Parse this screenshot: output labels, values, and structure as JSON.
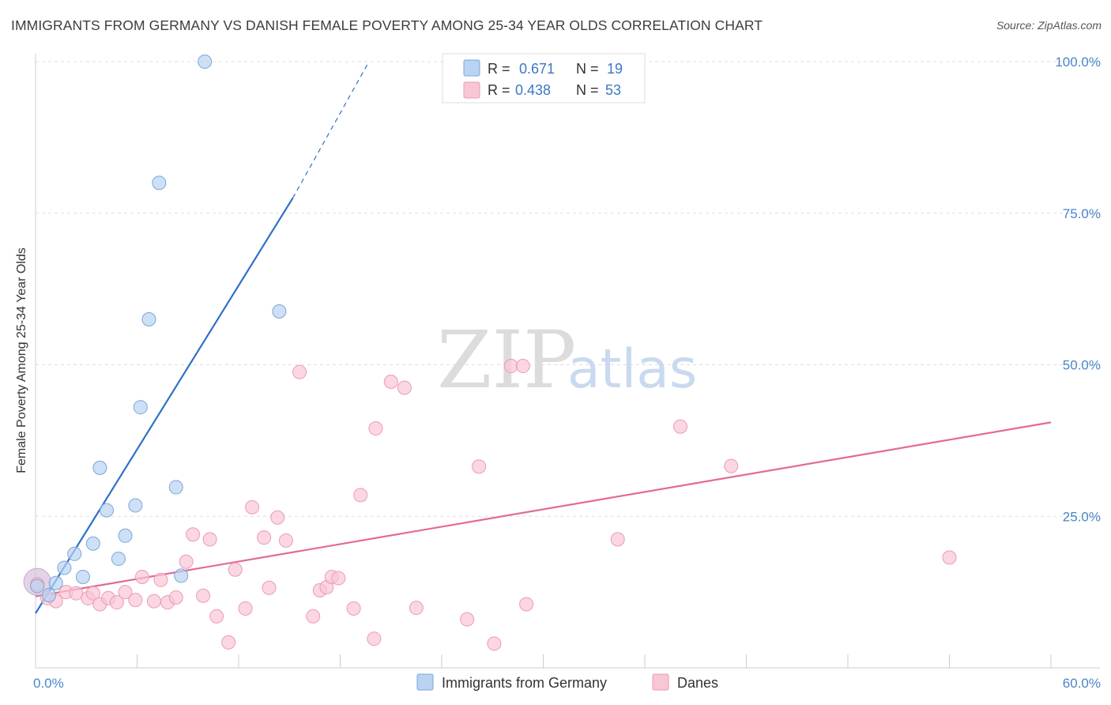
{
  "title": "IMMIGRANTS FROM GERMANY VS DANISH FEMALE POVERTY AMONG 25-34 YEAR OLDS CORRELATION CHART",
  "source": "Source: ZipAtlas.com",
  "watermark": {
    "zip": "ZIP",
    "atlas": "atlas"
  },
  "colors": {
    "germany_fill": "#b9d3f2",
    "germany_stroke": "#7aa6d9",
    "germany_line": "#2f70c9",
    "danes_fill": "#f8c6d5",
    "danes_stroke": "#ee9ab3",
    "danes_line": "#e36a93",
    "tick_text": "#4a86c8",
    "grid": "#dddddd"
  },
  "legend": {
    "r_label": "R =",
    "n_label": "N =",
    "germany": {
      "r": "0.671",
      "n": "19"
    },
    "danes": {
      "r": "0.438",
      "n": "53"
    }
  },
  "chart_data": {
    "type": "scatter",
    "title": "IMMIGRANTS FROM GERMANY VS DANISH FEMALE POVERTY AMONG 25-34 YEAR OLDS CORRELATION CHART",
    "xlabel": "",
    "ylabel": "Female Poverty Among 25-34 Year Olds",
    "xlim": [
      0,
      60
    ],
    "ylim": [
      0,
      105
    ],
    "x_ticks": [
      "0.0%",
      "60.0%"
    ],
    "y_ticks": [
      {
        "value": 25,
        "label": "25.0%"
      },
      {
        "value": 50,
        "label": "50.0%"
      },
      {
        "value": 75,
        "label": "75.0%"
      },
      {
        "value": 100,
        "label": "100.0%"
      }
    ],
    "grid": true,
    "legend_position": "top-center",
    "series": [
      {
        "name": "Immigrants from Germany",
        "points": [
          [
            0.1,
            13.5
          ],
          [
            0.8,
            12.0
          ],
          [
            1.2,
            14.0
          ],
          [
            1.7,
            16.5
          ],
          [
            2.3,
            18.8
          ],
          [
            2.8,
            15.0
          ],
          [
            3.4,
            20.5
          ],
          [
            3.8,
            33.0
          ],
          [
            4.2,
            26.0
          ],
          [
            4.9,
            18.0
          ],
          [
            5.3,
            21.8
          ],
          [
            5.9,
            26.8
          ],
          [
            6.2,
            43.0
          ],
          [
            6.7,
            57.5
          ],
          [
            7.3,
            80.0
          ],
          [
            8.3,
            29.8
          ],
          [
            8.6,
            15.2
          ],
          [
            10.0,
            100.0
          ],
          [
            14.4,
            58.8
          ]
        ],
        "trend": {
          "x0": 0,
          "y0": 9.0,
          "x1": 15.2,
          "y1": 77.5,
          "dash_to_x": 19.7,
          "dash_to_y": 100
        }
      },
      {
        "name": "Danes",
        "points": [
          [
            0.1,
            13.8
          ],
          [
            0.7,
            11.5
          ],
          [
            1.2,
            11.0
          ],
          [
            1.8,
            12.5
          ],
          [
            2.4,
            12.3
          ],
          [
            3.1,
            11.5
          ],
          [
            3.4,
            12.3
          ],
          [
            3.8,
            10.5
          ],
          [
            4.3,
            11.5
          ],
          [
            4.8,
            10.8
          ],
          [
            5.3,
            12.5
          ],
          [
            5.9,
            11.2
          ],
          [
            6.3,
            15.0
          ],
          [
            7.0,
            11.0
          ],
          [
            7.4,
            14.5
          ],
          [
            7.8,
            10.8
          ],
          [
            8.3,
            11.6
          ],
          [
            8.9,
            17.5
          ],
          [
            9.3,
            22.0
          ],
          [
            9.9,
            11.9
          ],
          [
            10.3,
            21.2
          ],
          [
            10.7,
            8.5
          ],
          [
            11.4,
            4.2
          ],
          [
            11.8,
            16.2
          ],
          [
            12.4,
            9.8
          ],
          [
            12.8,
            26.5
          ],
          [
            13.5,
            21.5
          ],
          [
            13.8,
            13.2
          ],
          [
            14.3,
            24.8
          ],
          [
            14.8,
            21.0
          ],
          [
            15.6,
            48.8
          ],
          [
            16.4,
            8.5
          ],
          [
            16.8,
            12.8
          ],
          [
            17.2,
            13.3
          ],
          [
            17.5,
            15.0
          ],
          [
            17.9,
            14.8
          ],
          [
            18.8,
            9.8
          ],
          [
            19.2,
            28.5
          ],
          [
            20.0,
            4.8
          ],
          [
            20.1,
            39.5
          ],
          [
            21.0,
            47.2
          ],
          [
            21.8,
            46.2
          ],
          [
            22.5,
            9.9
          ],
          [
            25.5,
            8.0
          ],
          [
            26.2,
            33.2
          ],
          [
            27.1,
            4.0
          ],
          [
            28.1,
            49.8
          ],
          [
            28.8,
            49.8
          ],
          [
            29.0,
            10.5
          ],
          [
            34.4,
            21.2
          ],
          [
            38.1,
            39.8
          ],
          [
            41.1,
            33.3
          ],
          [
            54.0,
            18.2
          ]
        ],
        "trend": {
          "x0": 0,
          "y0": 11.8,
          "x1": 60,
          "y1": 40.5
        }
      }
    ]
  },
  "bottom_legend": [
    "Immigrants from Germany",
    "Danes"
  ]
}
